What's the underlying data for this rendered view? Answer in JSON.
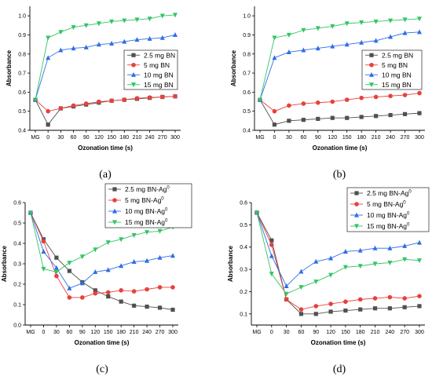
{
  "chart_data": [
    {
      "panel_label": "(a)",
      "type": "line",
      "x": [
        "MG",
        "0",
        "30",
        "60",
        "90",
        "120",
        "150",
        "180",
        "210",
        "240",
        "270",
        "300"
      ],
      "ylabel": "Absorbance",
      "xlabel": "Ozonation time (s)",
      "ylim": [
        0.4,
        1.05
      ],
      "yticks": [
        "0.4",
        "0.5",
        "0.6",
        "0.7",
        "0.8",
        "0.9",
        "1.0"
      ],
      "grid": false,
      "legend_position": "middle-right",
      "series": [
        {
          "name": "2.5 mg BN",
          "sup": "",
          "marker": "square",
          "color": "#505050",
          "values": [
            0.56,
            0.43,
            0.515,
            0.525,
            0.535,
            0.545,
            0.555,
            0.56,
            0.565,
            0.57,
            0.575,
            0.578
          ]
        },
        {
          "name": "5 mg BN",
          "sup": "",
          "marker": "circle",
          "color": "#e8413c",
          "values": [
            0.56,
            0.5,
            0.515,
            0.53,
            0.54,
            0.55,
            0.555,
            0.56,
            0.568,
            0.572,
            0.575,
            0.578
          ]
        },
        {
          "name": "10 mg BN",
          "sup": "",
          "marker": "triangle-up",
          "color": "#2f6ee6",
          "values": [
            0.56,
            0.78,
            0.82,
            0.83,
            0.835,
            0.85,
            0.855,
            0.865,
            0.875,
            0.88,
            0.885,
            0.9
          ]
        },
        {
          "name": "15 mg BN",
          "sup": "",
          "marker": "triangle-down",
          "color": "#33c466",
          "values": [
            0.56,
            0.885,
            0.915,
            0.94,
            0.95,
            0.96,
            0.97,
            0.975,
            0.98,
            0.985,
            1.0,
            1.005
          ]
        }
      ]
    },
    {
      "panel_label": "(b)",
      "type": "line",
      "x": [
        "MG",
        "0",
        "30",
        "60",
        "90",
        "120",
        "150",
        "180",
        "210",
        "240",
        "270",
        "300"
      ],
      "ylabel": "Absorbance",
      "xlabel": "Ozonation time (s)",
      "ylim": [
        0.4,
        1.05
      ],
      "yticks": [
        "0.4",
        "0.5",
        "0.6",
        "0.7",
        "0.8",
        "0.9",
        "1.0"
      ],
      "grid": false,
      "legend_position": "middle-right",
      "series": [
        {
          "name": "2.5 mg BN",
          "sup": "",
          "marker": "square",
          "color": "#505050",
          "values": [
            0.56,
            0.43,
            0.45,
            0.455,
            0.46,
            0.465,
            0.465,
            0.47,
            0.475,
            0.48,
            0.485,
            0.49
          ]
        },
        {
          "name": "5 mg BN",
          "sup": "",
          "marker": "circle",
          "color": "#e8413c",
          "values": [
            0.56,
            0.5,
            0.53,
            0.54,
            0.545,
            0.55,
            0.56,
            0.57,
            0.575,
            0.58,
            0.585,
            0.595
          ]
        },
        {
          "name": "10 mg BN",
          "sup": "",
          "marker": "triangle-up",
          "color": "#2f6ee6",
          "values": [
            0.56,
            0.78,
            0.81,
            0.82,
            0.83,
            0.84,
            0.85,
            0.86,
            0.87,
            0.89,
            0.91,
            0.915
          ]
        },
        {
          "name": "15 mg BN",
          "sup": "",
          "marker": "triangle-down",
          "color": "#33c466",
          "values": [
            0.56,
            0.885,
            0.9,
            0.925,
            0.935,
            0.945,
            0.96,
            0.965,
            0.97,
            0.975,
            0.98,
            0.985
          ]
        }
      ]
    },
    {
      "panel_label": "(c)",
      "type": "line",
      "x": [
        "MG",
        "0",
        "30",
        "60",
        "90",
        "120",
        "150",
        "180",
        "210",
        "240",
        "270",
        "300"
      ],
      "ylabel": "Absorbance",
      "xlabel": "Ozonation time (s)",
      "ylim": [
        0.0,
        0.6
      ],
      "yticks": [
        "0.0",
        "0.1",
        "0.2",
        "0.3",
        "0.4",
        "0.5",
        "0.6"
      ],
      "grid": false,
      "legend_position": "top-right",
      "series": [
        {
          "name": "2.5 mg BN-Ag",
          "sup": "0",
          "marker": "square",
          "color": "#505050",
          "values": [
            0.55,
            0.42,
            0.33,
            0.265,
            0.21,
            0.17,
            0.14,
            0.115,
            0.095,
            0.09,
            0.085,
            0.075
          ]
        },
        {
          "name": "5 mg BN-Ag",
          "sup": "0",
          "marker": "circle",
          "color": "#e8413c",
          "values": [
            0.55,
            0.41,
            0.24,
            0.135,
            0.135,
            0.155,
            0.16,
            0.17,
            0.165,
            0.175,
            0.185,
            0.185
          ]
        },
        {
          "name": "10 mg BN-Ag",
          "sup": "0",
          "marker": "triangle-up",
          "color": "#2f6ee6",
          "values": [
            0.55,
            0.36,
            0.28,
            0.18,
            0.205,
            0.26,
            0.27,
            0.29,
            0.31,
            0.315,
            0.33,
            0.34
          ]
        },
        {
          "name": "15 mg BN-Ag",
          "sup": "0",
          "marker": "triangle-down",
          "color": "#33c466",
          "values": [
            0.55,
            0.275,
            0.26,
            0.305,
            0.335,
            0.37,
            0.405,
            0.42,
            0.44,
            0.455,
            0.46,
            0.48
          ]
        }
      ]
    },
    {
      "panel_label": "(d)",
      "type": "line",
      "x": [
        "MG",
        "0",
        "30",
        "60",
        "90",
        "120",
        "150",
        "180",
        "210",
        "240",
        "270",
        "300"
      ],
      "ylabel": "Absorbance",
      "xlabel": "Ozonation time (s)",
      "ylim": [
        0.05,
        0.6
      ],
      "yticks": [
        "0.1",
        "0.2",
        "0.3",
        "0.4",
        "0.5",
        "0.6"
      ],
      "grid": false,
      "legend_position": "top-right",
      "series": [
        {
          "name": "2.5 mg BN-Ag",
          "sup": "0",
          "marker": "square",
          "color": "#505050",
          "values": [
            0.555,
            0.43,
            0.165,
            0.1,
            0.1,
            0.11,
            0.115,
            0.12,
            0.125,
            0.125,
            0.13,
            0.135
          ]
        },
        {
          "name": "5 mg BN-Ag",
          "sup": "0",
          "marker": "circle",
          "color": "#e8413c",
          "values": [
            0.555,
            0.41,
            0.165,
            0.12,
            0.135,
            0.145,
            0.155,
            0.165,
            0.17,
            0.175,
            0.17,
            0.18
          ]
        },
        {
          "name": "10 mg BN-Ag",
          "sup": "0",
          "marker": "triangle-up",
          "color": "#2f6ee6",
          "values": [
            0.555,
            0.36,
            0.225,
            0.29,
            0.335,
            0.35,
            0.38,
            0.385,
            0.395,
            0.395,
            0.405,
            0.42
          ]
        },
        {
          "name": "15 mg BN-Ag",
          "sup": "0",
          "marker": "triangle-down",
          "color": "#33c466",
          "values": [
            0.555,
            0.28,
            0.19,
            0.22,
            0.245,
            0.275,
            0.31,
            0.315,
            0.325,
            0.33,
            0.345,
            0.34
          ]
        }
      ]
    }
  ]
}
